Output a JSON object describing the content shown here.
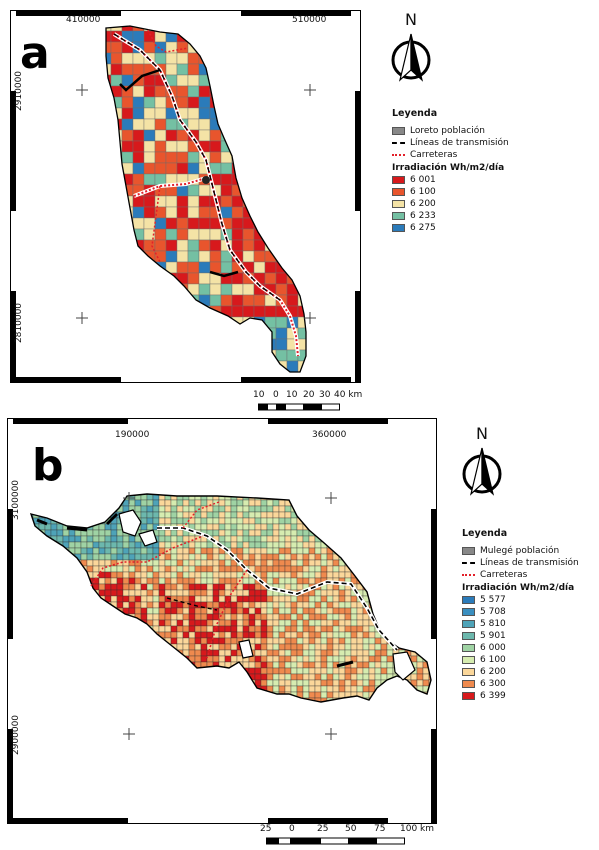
{
  "panel_a": {
    "letter": "a",
    "x_ticks": [
      "410000",
      "510000"
    ],
    "y_ticks": [
      "2910000",
      "2810000"
    ],
    "legend": {
      "title": "Leyenda",
      "population": "Loreto población",
      "lines": "Líneas de transmisión",
      "roads": "Carreteras",
      "irradiance_title": "Irradiación Wh/m2/día",
      "classes": [
        {
          "label": "6 001",
          "color": "#d7191c"
        },
        {
          "label": "6 100",
          "color": "#e8552d"
        },
        {
          "label": "6 200",
          "color": "#f4e3a6"
        },
        {
          "label": "6 233",
          "color": "#74c0a3"
        },
        {
          "label": "6 275",
          "color": "#2b7bba"
        }
      ]
    },
    "scale": {
      "labels": [
        "10",
        "0",
        "10",
        "20",
        "30",
        "40 km"
      ]
    },
    "north": "N"
  },
  "panel_b": {
    "letter": "b",
    "x_ticks": [
      "190000",
      "360000"
    ],
    "y_ticks": [
      "3100000",
      "2900000"
    ],
    "legend": {
      "title": "Leyenda",
      "population": "Mulegé población",
      "lines": "Líneas de transmisión",
      "roads": "Carreteras",
      "irradiance_title": "Irradiación Wh/m2/día",
      "classes": [
        {
          "label": "5 577",
          "color": "#2b7bba"
        },
        {
          "label": "5 708",
          "color": "#3a8fc0"
        },
        {
          "label": "5 810",
          "color": "#4ea3b8"
        },
        {
          "label": "5 901",
          "color": "#6cb8ad"
        },
        {
          "label": "6 000",
          "color": "#9fd3a4"
        },
        {
          "label": "6 100",
          "color": "#d6ecb0"
        },
        {
          "label": "6 200",
          "color": "#fbd79a"
        },
        {
          "label": "6 300",
          "color": "#ef8a4e"
        },
        {
          "label": "6 399",
          "color": "#d7191c"
        }
      ]
    },
    "scale": {
      "labels": [
        "25",
        "0",
        "25",
        "50",
        "75",
        "100 km"
      ]
    },
    "north": "N"
  }
}
